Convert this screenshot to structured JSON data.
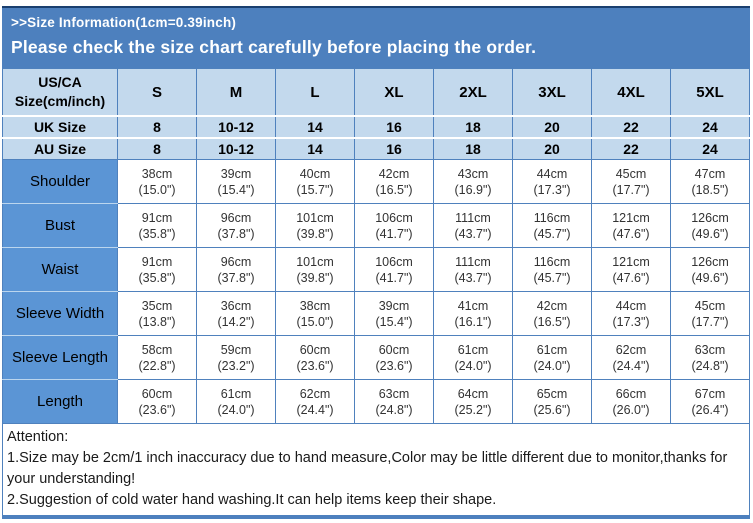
{
  "colors": {
    "banner_blue": "#4d80be",
    "banner_top_border": "#1a3f6f",
    "header_light_blue": "#c3d9ed",
    "label_blue": "#5b95d5",
    "grid_border_blue": "#4f81bd"
  },
  "header": {
    "title": ">>Size Information(1cm=0.39inch)",
    "subtitle": "Please check the size chart carefully before placing the order."
  },
  "table": {
    "corner": {
      "line1": "US/CA",
      "line2": "Size(cm/inch)"
    },
    "sizes": [
      "S",
      "M",
      "L",
      "XL",
      "2XL",
      "3XL",
      "4XL",
      "5XL"
    ],
    "uk": {
      "label": "UK Size",
      "values": [
        "8",
        "10-12",
        "14",
        "16",
        "18",
        "20",
        "22",
        "24"
      ]
    },
    "au": {
      "label": "AU Size",
      "values": [
        "8",
        "10-12",
        "14",
        "16",
        "18",
        "20",
        "22",
        "24"
      ]
    },
    "measurements": [
      {
        "label": "Shoulder",
        "values": [
          {
            "cm": "38cm",
            "inch": "(15.0\")"
          },
          {
            "cm": "39cm",
            "inch": "(15.4\")"
          },
          {
            "cm": "40cm",
            "inch": "(15.7\")"
          },
          {
            "cm": "42cm",
            "inch": "(16.5\")"
          },
          {
            "cm": "43cm",
            "inch": "(16.9\")"
          },
          {
            "cm": "44cm",
            "inch": "(17.3\")"
          },
          {
            "cm": "45cm",
            "inch": "(17.7\")"
          },
          {
            "cm": "47cm",
            "inch": "(18.5\")"
          }
        ]
      },
      {
        "label": "Bust",
        "values": [
          {
            "cm": "91cm",
            "inch": "(35.8\")"
          },
          {
            "cm": "96cm",
            "inch": "(37.8\")"
          },
          {
            "cm": "101cm",
            "inch": "(39.8\")"
          },
          {
            "cm": "106cm",
            "inch": "(41.7\")"
          },
          {
            "cm": "111cm",
            "inch": "(43.7\")"
          },
          {
            "cm": "116cm",
            "inch": "(45.7\")"
          },
          {
            "cm": "121cm",
            "inch": "(47.6\")"
          },
          {
            "cm": "126cm",
            "inch": "(49.6\")"
          }
        ]
      },
      {
        "label": "Waist",
        "values": [
          {
            "cm": "91cm",
            "inch": "(35.8\")"
          },
          {
            "cm": "96cm",
            "inch": "(37.8\")"
          },
          {
            "cm": "101cm",
            "inch": "(39.8\")"
          },
          {
            "cm": "106cm",
            "inch": "(41.7\")"
          },
          {
            "cm": "111cm",
            "inch": "(43.7\")"
          },
          {
            "cm": "116cm",
            "inch": "(45.7\")"
          },
          {
            "cm": "121cm",
            "inch": "(47.6\")"
          },
          {
            "cm": "126cm",
            "inch": "(49.6\")"
          }
        ]
      },
      {
        "label": "Sleeve Width",
        "values": [
          {
            "cm": "35cm",
            "inch": "(13.8\")"
          },
          {
            "cm": "36cm",
            "inch": "(14.2\")"
          },
          {
            "cm": "38cm",
            "inch": "(15.0\")"
          },
          {
            "cm": "39cm",
            "inch": "(15.4\")"
          },
          {
            "cm": "41cm",
            "inch": "(16.1\")"
          },
          {
            "cm": "42cm",
            "inch": "(16.5\")"
          },
          {
            "cm": "44cm",
            "inch": "(17.3\")"
          },
          {
            "cm": "45cm",
            "inch": "(17.7\")"
          }
        ]
      },
      {
        "label": "Sleeve Length",
        "values": [
          {
            "cm": "58cm",
            "inch": "(22.8\")"
          },
          {
            "cm": "59cm",
            "inch": "(23.2\")"
          },
          {
            "cm": "60cm",
            "inch": "(23.6\")"
          },
          {
            "cm": "60cm",
            "inch": "(23.6\")"
          },
          {
            "cm": "61cm",
            "inch": "(24.0\")"
          },
          {
            "cm": "61cm",
            "inch": "(24.0\")"
          },
          {
            "cm": "62cm",
            "inch": "(24.4\")"
          },
          {
            "cm": "63cm",
            "inch": "(24.8\")"
          }
        ]
      },
      {
        "label": "Length",
        "values": [
          {
            "cm": "60cm",
            "inch": "(23.6\")"
          },
          {
            "cm": "61cm",
            "inch": "(24.0\")"
          },
          {
            "cm": "62cm",
            "inch": "(24.4\")"
          },
          {
            "cm": "63cm",
            "inch": "(24.8\")"
          },
          {
            "cm": "64cm",
            "inch": "(25.2\")"
          },
          {
            "cm": "65cm",
            "inch": "(25.6\")"
          },
          {
            "cm": "66cm",
            "inch": "(26.0\")"
          },
          {
            "cm": "67cm",
            "inch": "(26.4\")"
          }
        ]
      }
    ]
  },
  "attention": {
    "heading": "Attention:",
    "line1": "1.Size may be 2cm/1 inch inaccuracy due to hand measure,Color may be little different due to monitor,thanks for your understanding!",
    "line2": "2.Suggestion of cold water hand washing.It can help items keep their shape."
  }
}
